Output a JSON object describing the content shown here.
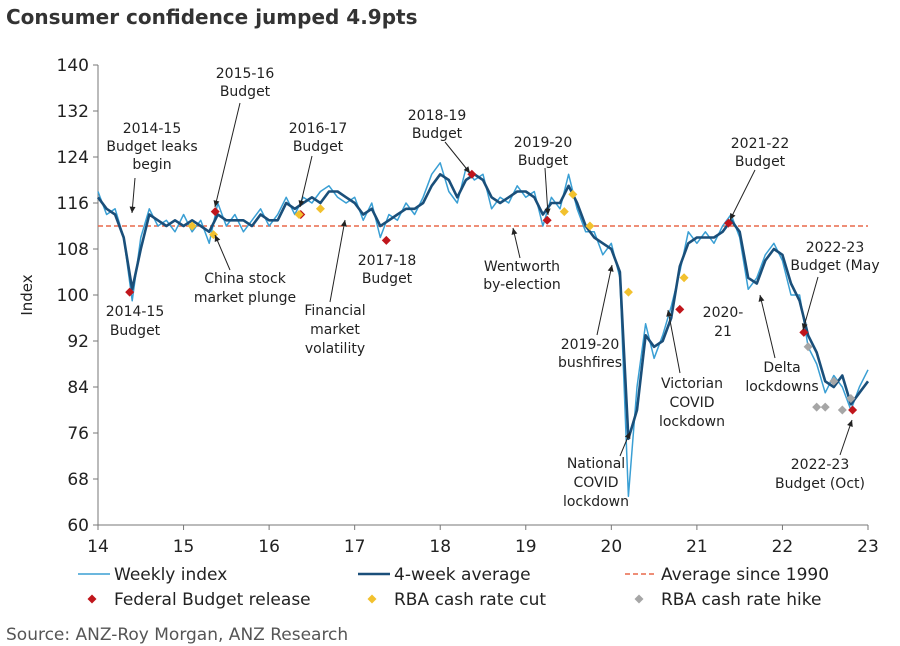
{
  "chart_data": {
    "type": "line",
    "title": "Consumer confidence jumped 4.9pts",
    "y_label": "Index",
    "source": "Source: ANZ-Roy Morgan, ANZ Research",
    "xlim": [
      14,
      23
    ],
    "xticks": [
      14,
      15,
      16,
      17,
      18,
      19,
      20,
      21,
      22,
      23
    ],
    "ylim": [
      60,
      140
    ],
    "yticks": [
      60,
      68,
      76,
      84,
      92,
      100,
      108,
      116,
      124,
      132,
      140
    ],
    "x": [
      14.0,
      14.1,
      14.2,
      14.3,
      14.4,
      14.5,
      14.6,
      14.7,
      14.8,
      14.9,
      15.0,
      15.1,
      15.2,
      15.3,
      15.4,
      15.5,
      15.6,
      15.7,
      15.8,
      15.9,
      16.0,
      16.1,
      16.2,
      16.3,
      16.4,
      16.5,
      16.6,
      16.7,
      16.8,
      16.9,
      17.0,
      17.1,
      17.2,
      17.3,
      17.4,
      17.5,
      17.6,
      17.7,
      17.8,
      17.9,
      18.0,
      18.1,
      18.2,
      18.3,
      18.4,
      18.5,
      18.6,
      18.7,
      18.8,
      18.9,
      19.0,
      19.1,
      19.2,
      19.3,
      19.4,
      19.5,
      19.6,
      19.7,
      19.8,
      19.9,
      20.0,
      20.1,
      20.2,
      20.3,
      20.4,
      20.5,
      20.6,
      20.7,
      20.8,
      20.9,
      21.0,
      21.1,
      21.2,
      21.3,
      21.4,
      21.5,
      21.6,
      21.7,
      21.8,
      21.9,
      22.0,
      22.1,
      22.2,
      22.3,
      22.4,
      22.5,
      22.6,
      22.7,
      22.8,
      22.9,
      23.0
    ],
    "series": [
      {
        "name": "Weekly index",
        "color": "#3a9fd4",
        "values": [
          118,
          114,
          115,
          110,
          99,
          110,
          115,
          112,
          113,
          111,
          114,
          111,
          113,
          109,
          116,
          112,
          114,
          111,
          113,
          115,
          112,
          114,
          117,
          114,
          117,
          116,
          118,
          119,
          117,
          116,
          117,
          113,
          116,
          110,
          114,
          113,
          116,
          114,
          117,
          121,
          123,
          118,
          116,
          122,
          120,
          121,
          115,
          117,
          116,
          119,
          117,
          118,
          112,
          117,
          115,
          121,
          115,
          111,
          111,
          107,
          109,
          103,
          65,
          84,
          95,
          89,
          93,
          98,
          104,
          111,
          109,
          111,
          109,
          112,
          114,
          110,
          101,
          103,
          107,
          109,
          106,
          100,
          100,
          91,
          88,
          83,
          86,
          84,
          80,
          84,
          87
        ]
      },
      {
        "name": "4-week average",
        "color": "#1a4f7a",
        "values": [
          117,
          115,
          114,
          110,
          101,
          108,
          114,
          113,
          112,
          113,
          112,
          113,
          112,
          111,
          114,
          113,
          113,
          113,
          112,
          114,
          113,
          113,
          116,
          115,
          116,
          117,
          116,
          118,
          118,
          117,
          116,
          114,
          115,
          112,
          113,
          114,
          115,
          115,
          116,
          119,
          121,
          120,
          117,
          120,
          121,
          120,
          117,
          116,
          117,
          118,
          118,
          117,
          114,
          116,
          116,
          119,
          116,
          112,
          110,
          109,
          108,
          104,
          75,
          80,
          93,
          91,
          92,
          96,
          105,
          109,
          110,
          110,
          110,
          111,
          113,
          111,
          103,
          102,
          106,
          108,
          107,
          102,
          99,
          93,
          90,
          85,
          84,
          86,
          81,
          83,
          85
        ]
      }
    ],
    "reference_lines": [
      {
        "name": "Average since 1990",
        "value": 112,
        "color": "#e8694a"
      }
    ],
    "marker_series": [
      {
        "name": "Federal Budget release",
        "color": "#c0161c",
        "x": [
          14.37,
          15.37,
          16.37,
          17.37,
          18.37,
          19.25,
          20.8,
          21.37,
          22.25,
          22.82
        ],
        "values": [
          100.5,
          114.5,
          114,
          109.5,
          121,
          113,
          97.5,
          112.5,
          93.5,
          80
        ]
      },
      {
        "name": "RBA cash rate cut",
        "color": "#f2c12e",
        "x": [
          15.1,
          15.35,
          16.35,
          16.6,
          19.45,
          19.55,
          19.75,
          20.2,
          20.85
        ],
        "values": [
          112,
          110.5,
          114,
          115,
          114.5,
          117.5,
          112,
          100.5,
          103
        ]
      },
      {
        "name": "RBA cash rate hike",
        "color": "#a6a6a6",
        "x": [
          22.3,
          22.4,
          22.5,
          22.6,
          22.7,
          22.8
        ],
        "values": [
          91,
          80.5,
          80.5,
          85,
          80,
          82
        ]
      }
    ],
    "annotations": [
      {
        "lines": [
          "2014-15",
          "Budget leaks",
          "begin"
        ]
      },
      {
        "lines": [
          "2015-16",
          "Budget"
        ]
      },
      {
        "lines": [
          "2016-17",
          "Budget"
        ]
      },
      {
        "lines": [
          "2017-18",
          "Budget"
        ]
      },
      {
        "lines": [
          "2018-19",
          "Budget"
        ]
      },
      {
        "lines": [
          "2019-20",
          "Budget"
        ]
      },
      {
        "lines": [
          "2021-22",
          "Budget"
        ]
      },
      {
        "lines": [
          "2014-15",
          "Budget"
        ]
      },
      {
        "lines": [
          "China stock",
          "market plunge"
        ]
      },
      {
        "lines": [
          "Financial",
          "market",
          "volatility"
        ]
      },
      {
        "lines": [
          "Wentworth",
          "by-election"
        ]
      },
      {
        "lines": [
          "2019-20",
          "bushfires"
        ]
      },
      {
        "lines": [
          "National",
          "COVID",
          "lockdown"
        ]
      },
      {
        "lines": [
          "Victorian",
          "COVID",
          "lockdown"
        ]
      },
      {
        "lines": [
          "2020-",
          "21"
        ]
      },
      {
        "lines": [
          "Delta",
          "lockdowns"
        ]
      },
      {
        "lines": [
          "2022-23",
          "Budget (May"
        ]
      },
      {
        "lines": [
          "2022-23",
          "Budget (Oct)"
        ]
      }
    ]
  }
}
